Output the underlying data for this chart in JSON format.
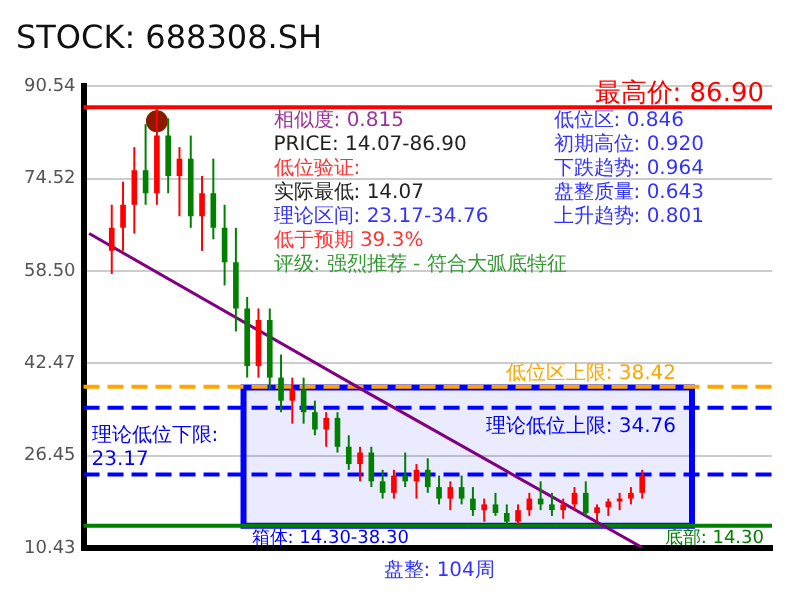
{
  "chart_data": {
    "type": "candlestick",
    "title": "STOCK: 688308.SH",
    "categories": [
      null,
      null,
      null,
      null,
      null,
      null,
      null,
      null,
      null,
      null,
      null,
      null,
      null,
      null,
      null,
      null,
      null,
      null,
      null,
      null,
      null,
      null,
      null,
      null,
      null,
      null,
      null,
      null,
      null,
      null,
      null,
      null,
      null,
      null,
      null,
      null,
      null,
      null,
      null,
      null,
      null,
      null,
      null,
      null,
      null,
      null,
      null,
      null,
      null,
      null,
      null,
      null,
      null,
      null,
      null,
      null,
      null,
      null,
      null,
      null,
      null
    ],
    "ohlc": [
      null,
      null,
      [
        62,
        70,
        58,
        66
      ],
      [
        66,
        74,
        62,
        70
      ],
      [
        70,
        80,
        65,
        76
      ],
      [
        76,
        84,
        70,
        72
      ],
      [
        72,
        86.9,
        70,
        82
      ],
      [
        82,
        85,
        72,
        75
      ],
      [
        75,
        80,
        68,
        78
      ],
      [
        78,
        82,
        66,
        68
      ],
      [
        68,
        75,
        62,
        72
      ],
      [
        72,
        78,
        64,
        66
      ],
      [
        66,
        70,
        56,
        60
      ],
      [
        60,
        66,
        48,
        52
      ],
      [
        52,
        54,
        40,
        42
      ],
      [
        42,
        52,
        40,
        50
      ],
      [
        50,
        52,
        38,
        40
      ],
      [
        40,
        44,
        34,
        36
      ],
      [
        36,
        40,
        32,
        38
      ],
      [
        38,
        40,
        32,
        34
      ],
      [
        34,
        36,
        30,
        31
      ],
      [
        31,
        34,
        28,
        33
      ],
      [
        33,
        34,
        27,
        28
      ],
      [
        28,
        30,
        24,
        25
      ],
      [
        25,
        28,
        22,
        27
      ],
      [
        27,
        28,
        21,
        22
      ],
      [
        22,
        24,
        19,
        20
      ],
      [
        20,
        24,
        19,
        23
      ],
      [
        23,
        27,
        21,
        22
      ],
      [
        22,
        25,
        19,
        24
      ],
      [
        24,
        26,
        20,
        21
      ],
      [
        21,
        23,
        18,
        19
      ],
      [
        19,
        22,
        17,
        21
      ],
      [
        21,
        23,
        18,
        19
      ],
      [
        19,
        21,
        16,
        17
      ],
      [
        17,
        19,
        15,
        18
      ],
      [
        18,
        20,
        16,
        16.5
      ],
      [
        16.5,
        18,
        14.07,
        15
      ],
      [
        15,
        18,
        14.5,
        17
      ],
      [
        17,
        20,
        16,
        19
      ],
      [
        19,
        22,
        17,
        18
      ],
      [
        18,
        20,
        16,
        17
      ],
      [
        17,
        19,
        15.5,
        18
      ],
      [
        18,
        21,
        17,
        20
      ],
      [
        20,
        22,
        16,
        16.5
      ],
      [
        16.5,
        18,
        15,
        17.5
      ],
      [
        17.5,
        19,
        16,
        18.5
      ],
      [
        18.5,
        20,
        17,
        19
      ],
      [
        19,
        21,
        18,
        20
      ],
      [
        20,
        24,
        19,
        23
      ],
      null,
      null,
      null,
      null,
      null,
      null,
      null,
      null,
      null,
      null,
      null
    ],
    "series": [
      {
        "type": "line",
        "color": "#800080",
        "values": [
          65,
          null,
          null,
          null,
          null,
          null,
          null,
          null,
          null,
          null,
          null,
          null,
          null,
          null,
          null,
          null,
          null,
          null,
          null,
          null,
          null,
          null,
          null,
          null,
          null,
          37,
          null,
          null,
          null,
          null,
          null,
          null,
          null,
          null,
          null,
          null,
          null,
          null,
          null,
          null,
          null,
          null,
          null,
          null,
          null,
          null,
          null,
          null,
          null,
          10.5,
          null,
          null,
          null,
          null,
          null,
          null,
          null,
          null,
          null,
          null,
          null
        ]
      },
      {
        "type": "scatter",
        "color": "#8b1a00",
        "values": [
          null,
          null,
          null,
          null,
          null,
          null,
          84.5,
          null,
          null,
          null,
          null,
          null,
          null,
          null,
          null,
          null,
          null,
          null,
          null,
          null,
          null,
          null,
          null,
          null,
          null,
          null,
          null,
          null,
          null,
          null,
          null,
          null,
          null,
          null,
          null,
          null,
          null,
          null,
          null,
          null,
          null,
          null,
          null,
          null,
          null,
          null,
          null,
          null,
          null,
          null,
          null,
          null,
          null,
          null,
          null,
          null,
          null,
          null,
          null,
          null,
          null
        ]
      }
    ],
    "ylim": [
      10.43,
      90.54
    ],
    "yticks": [
      10.43,
      26.45,
      42.47,
      {
        "value": 58.5,
        "label": "58.50"
      },
      74.52,
      90.54
    ],
    "grid": "y",
    "legend": false,
    "tick_labels": "y",
    "ref_lines": [
      {
        "axis": "y",
        "value": 86.9,
        "label": "最高价: 86.90",
        "color": "#ff0000",
        "line_style": "solid"
      },
      {
        "axis": "y",
        "value": 38.42,
        "label": "低位区上限: 38.42",
        "color": "#ffa500",
        "line_style": "dashed"
      },
      {
        "axis": "y",
        "value": 34.76,
        "label": "理论低位上限: 34.76",
        "color": "#0000ff",
        "line_style": "dashed"
      },
      {
        "axis": "y",
        "value": 23.17,
        "label": "理论低位下限: 23.17",
        "color": "#0000ff",
        "line_style": "dashed"
      },
      {
        "axis": "y",
        "value": 14.3,
        "label": "底部: 14.30",
        "color": "#008000",
        "line_style": "solid"
      }
    ],
    "bands": [
      {
        "axis": "y",
        "from": 14.3,
        "to": 38.3,
        "label": "箱体: 14.30-38.30",
        "color": "#0000ff"
      }
    ],
    "annotations": [
      "相似度: 0.815",
      "PRICE: 14.07-86.90",
      "低位验证:",
      "实际最低: 14.07",
      "理论区间: 23.17-34.76",
      "低于预期 39.3%",
      "评级: 强烈推荐 - 符合大弧底特征",
      "低位区: 0.846",
      "初期高位: 0.920",
      "下跌趋势: 0.964",
      "盘整质量: 0.643",
      "上升趋势: 0.801",
      "盘整: 104周"
    ]
  }
}
